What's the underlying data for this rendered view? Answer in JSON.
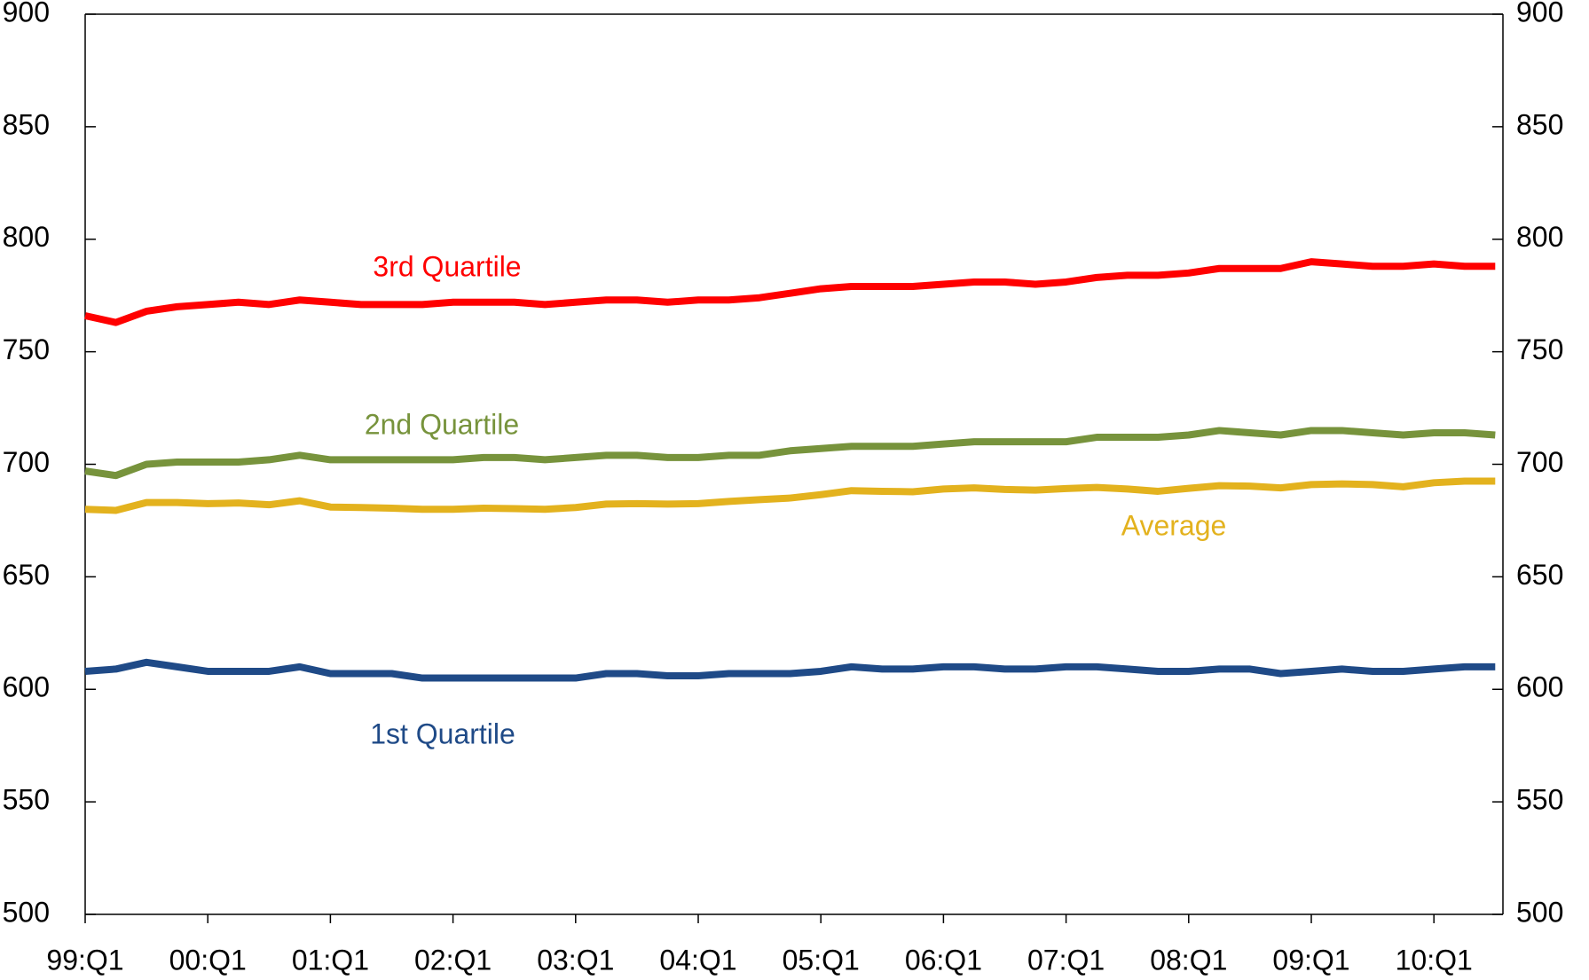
{
  "chart_data": {
    "type": "line",
    "categories": [
      "99:Q1",
      null,
      null,
      null,
      "00:Q1",
      null,
      null,
      null,
      "01:Q1",
      null,
      null,
      null,
      "02:Q1",
      null,
      null,
      null,
      "03:Q1",
      null,
      null,
      null,
      "04:Q1",
      null,
      null,
      null,
      "05:Q1",
      null,
      null,
      null,
      "06:Q1",
      null,
      null,
      null,
      "07:Q1",
      null,
      null,
      null,
      "08:Q1",
      null,
      null,
      null,
      "09:Q1",
      null,
      null,
      null,
      "10:Q1",
      null,
      null
    ],
    "series": [
      {
        "name": "3rd Quartile",
        "color": "#ff0000",
        "values": [
          766,
          763,
          768,
          770,
          771,
          772,
          771,
          773,
          772,
          771,
          771,
          771,
          772,
          772,
          772,
          771,
          772,
          773,
          773,
          772,
          773,
          773,
          774,
          776,
          778,
          779,
          779,
          779,
          780,
          781,
          781,
          780,
          781,
          783,
          784,
          784,
          785,
          787,
          787,
          787,
          790,
          789,
          788,
          788,
          789,
          788,
          788
        ]
      },
      {
        "name": "2nd Quartile",
        "color": "#77933c",
        "values": [
          697,
          695,
          700,
          701,
          701,
          701,
          702,
          704,
          702,
          702,
          702,
          702,
          702,
          703,
          703,
          702,
          703,
          704,
          704,
          703,
          703,
          704,
          704,
          706,
          707,
          708,
          708,
          708,
          709,
          710,
          710,
          710,
          710,
          712,
          712,
          712,
          713,
          715,
          714,
          713,
          715,
          715,
          714,
          713,
          714,
          714,
          713
        ]
      },
      {
        "name": "Average",
        "color": "#e3b21e",
        "values": [
          680,
          679.5,
          683,
          683,
          682.5,
          682.8,
          682,
          683.8,
          681,
          680.8,
          680.5,
          680,
          680,
          680.5,
          680.3,
          680,
          680.8,
          682.3,
          682.5,
          682.3,
          682.5,
          683.5,
          684.3,
          685,
          686.5,
          688.3,
          688,
          687.8,
          689,
          689.5,
          688.8,
          688.5,
          689.2,
          689.7,
          689,
          688,
          689.3,
          690.5,
          690.3,
          689.5,
          691,
          691.3,
          691,
          690,
          691.8,
          692.5,
          692.5
        ]
      },
      {
        "name": "1st Quartile",
        "color": "#1f4a87",
        "values": [
          608,
          609,
          612,
          610,
          608,
          608,
          608,
          610,
          607,
          607,
          607,
          605,
          605,
          605,
          605,
          605,
          605,
          607,
          607,
          606,
          606,
          607,
          607,
          607,
          608,
          610,
          609,
          609,
          610,
          610,
          609,
          609,
          610,
          610,
          609,
          608,
          608,
          609,
          609,
          607,
          608,
          609,
          608,
          608,
          609,
          610,
          610
        ]
      }
    ],
    "ylim": [
      500,
      900
    ],
    "yticks": [
      500,
      550,
      600,
      650,
      700,
      750,
      800,
      850,
      900
    ],
    "y2lim": [
      500,
      900
    ],
    "y2ticks": [
      500,
      550,
      600,
      650,
      700,
      750,
      800,
      850,
      900
    ],
    "grid": false
  }
}
